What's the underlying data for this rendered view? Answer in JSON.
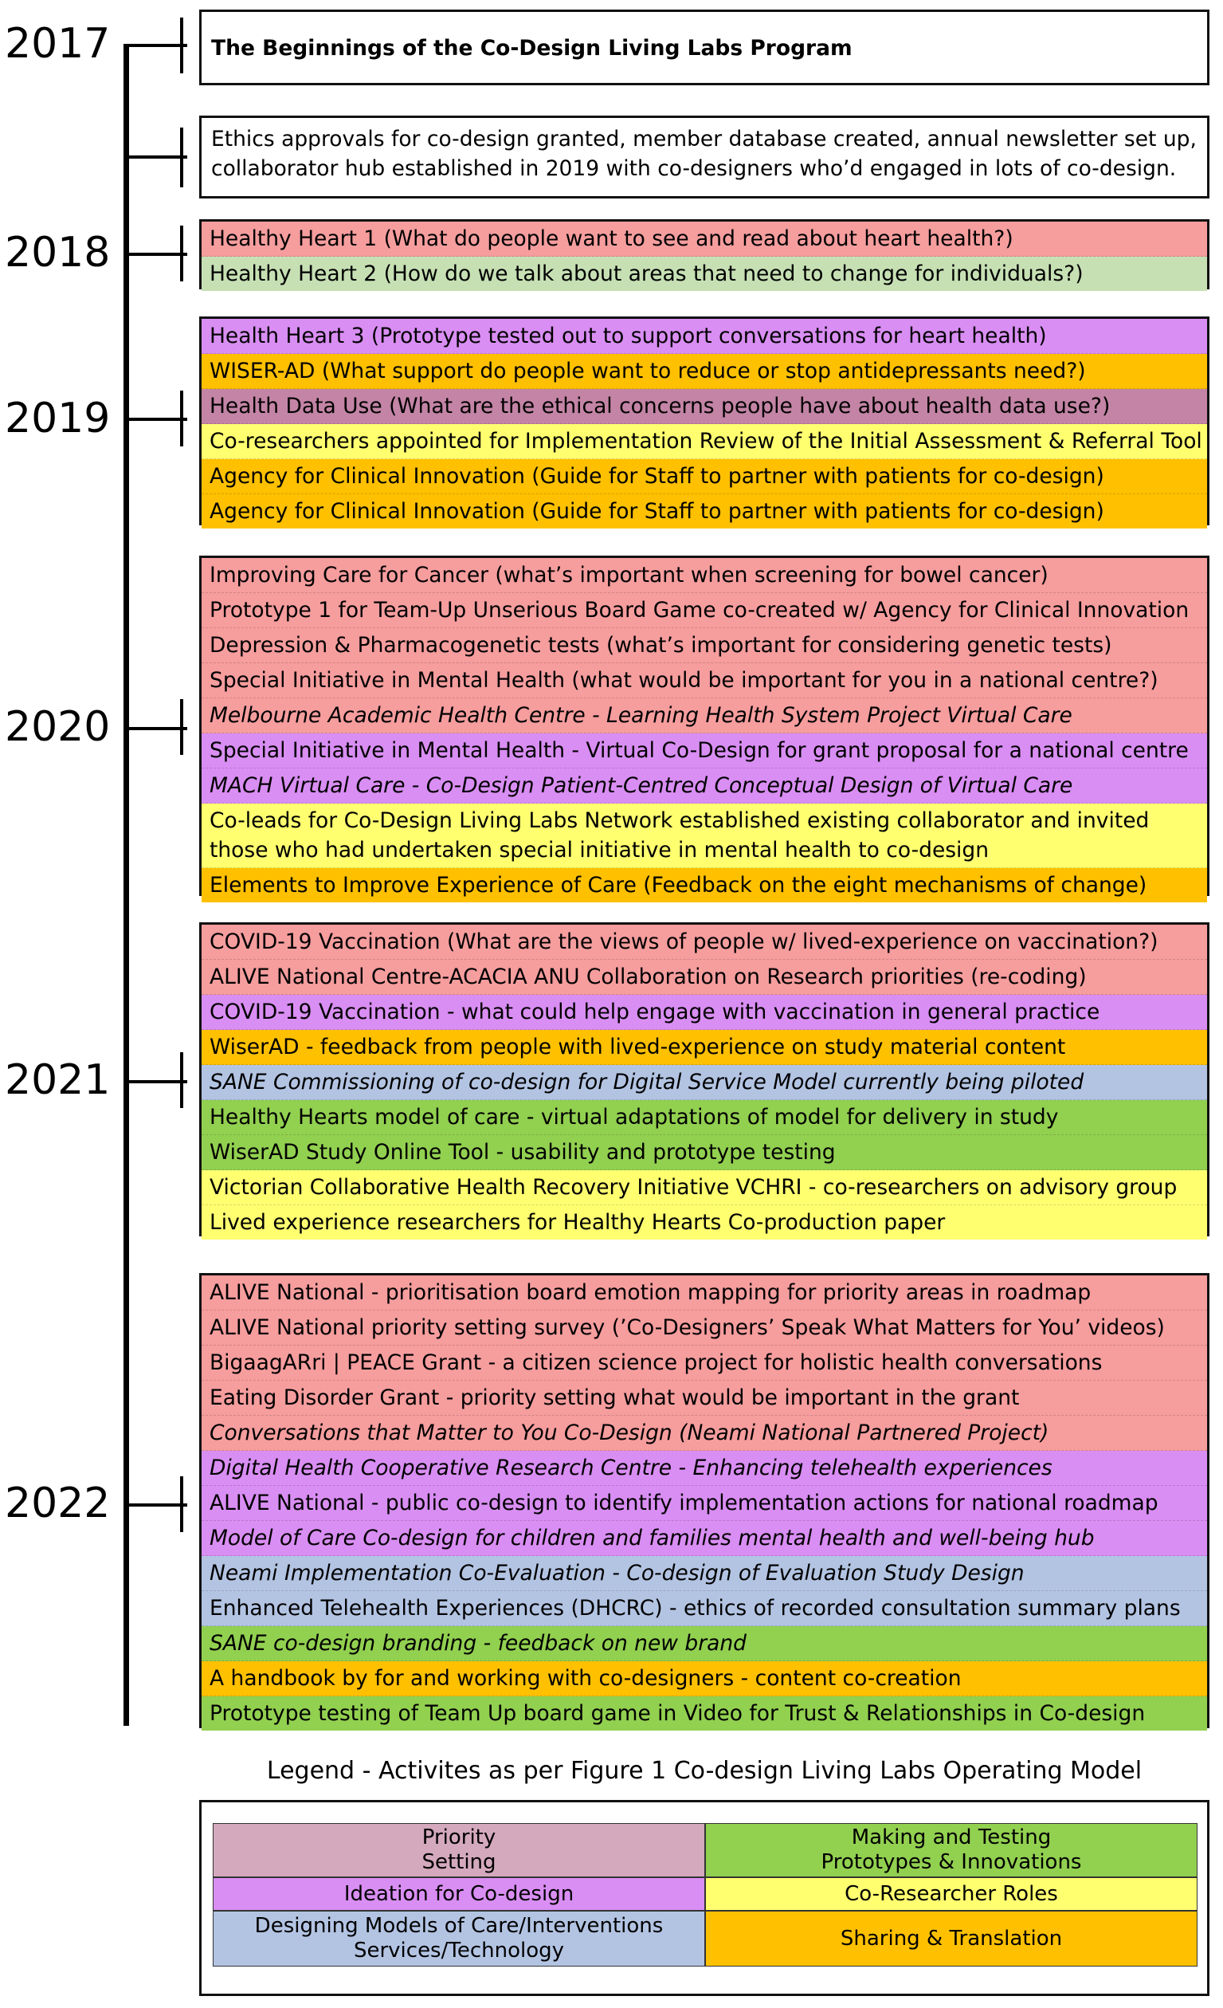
{
  "colors": {
    "priority_setting": "#f69d9e",
    "ideation": "#d98ef3",
    "designing_models": "#b3c4e3",
    "making_testing": "#92d050",
    "co_researcher": "#ffff70",
    "sharing_translation": "#ffc000",
    "healthy_heart_2": "#c6e0b4",
    "health_data": "#c384a5",
    "legend_priority": "#d4a9bd"
  },
  "years": [
    {
      "label": "2017"
    },
    {
      "label": "2018"
    },
    {
      "label": "2019"
    },
    {
      "label": "2020"
    },
    {
      "label": "2021"
    },
    {
      "label": "2022"
    }
  ],
  "title_box": {
    "text": "The Beginnings of the Co-Design Living Labs Program"
  },
  "ethics_box": {
    "text": "Ethics approvals for co-design granted, member database created, annual newsletter set up, collaborator hub established in 2019 with co-designers who’d engaged in lots of co-design."
  },
  "groups": [
    {
      "rows": [
        {
          "text": "Healthy Heart 1 (What do people want to see and read about heart health?)",
          "color": "#f69d9e"
        },
        {
          "text": "Healthy Heart 2 (How do we talk about areas that need to change for individuals?)",
          "color": "#c6e0b4"
        }
      ]
    },
    {
      "rows": [
        {
          "text": "Health Heart 3 (Prototype tested out to support conversations for heart health)",
          "color": "#d98ef3"
        },
        {
          "text": "WISER-AD (What support do people want to reduce or stop antidepressants need?)",
          "color": "#ffc000"
        },
        {
          "text": "Health Data Use (What are the ethical concerns people have about health data use?)",
          "color": "#c384a5"
        },
        {
          "text": "Co-researchers appointed for Implementation Review of the Initial Assessment & Referral Tool",
          "color": "#ffff70"
        },
        {
          "text": "Agency for Clinical Innovation (Guide for Staff to partner with patients for co-design)",
          "color": "#ffc000"
        },
        {
          "text": "Agency for Clinical Innovation (Guide for Staff to partner with patients for co-design)",
          "color": "#ffc000"
        }
      ]
    },
    {
      "rows": [
        {
          "text": "Improving Care for Cancer (what’s important when screening for bowel cancer)",
          "color": "#f69d9e"
        },
        {
          "text": "Prototype 1 for Team-Up Unserious Board Game co-created w/ Agency for Clinical Innovation",
          "color": "#f69d9e"
        },
        {
          "text": "Depression & Pharmacogenetic tests (what’s important for considering genetic tests)",
          "color": "#f69d9e"
        },
        {
          "text": "Special Initiative in Mental Health (what would be important for you in a national centre?)",
          "color": "#f69d9e"
        },
        {
          "text": "Melbourne Academic Health Centre - Learning Health System Project Virtual Care",
          "color": "#f69d9e",
          "italic": true
        },
        {
          "text": "Special Initiative in Mental Health - Virtual Co-Design for grant proposal for a national centre",
          "color": "#d98ef3"
        },
        {
          "text": "MACH Virtual Care - Co-Design Patient-Centred Conceptual Design of Virtual Care",
          "color": "#d98ef3",
          "italic": true
        },
        {
          "text": "Co-leads for Co-Design Living Labs Network established existing collaborator and invited those who had undertaken special initiative in mental health to co-design",
          "color": "#ffff70",
          "two": true
        },
        {
          "text": "Elements to Improve Experience of Care (Feedback on the eight mechanisms of change)",
          "color": "#ffc000"
        }
      ]
    },
    {
      "rows": [
        {
          "text": "COVID-19 Vaccination (What are the views of people w/ lived-experience on vaccination?)",
          "color": "#f69d9e"
        },
        {
          "text": "ALIVE National Centre-ACACIA ANU Collaboration on Research priorities (re-coding)",
          "color": "#f69d9e"
        },
        {
          "text": "COVID-19 Vaccination - what could help engage with vaccination in general practice",
          "color": "#d98ef3"
        },
        {
          "text": "WiserAD - feedback from people with lived-experience on study material content",
          "color": "#ffc000"
        },
        {
          "text": "SANE Commissioning of co-design for Digital Service Model currently being piloted",
          "color": "#b3c4e3",
          "italic": true
        },
        {
          "text": "Healthy Hearts model of care - virtual adaptations of model for delivery in study",
          "color": "#92d050"
        },
        {
          "text": "WiserAD Study Online Tool - usability and prototype testing",
          "color": "#92d050"
        },
        {
          "text": "Victorian Collaborative Health Recovery Initiative VCHRI - co-researchers on advisory group",
          "color": "#ffff70"
        },
        {
          "text": "Lived experience researchers for Healthy Hearts Co-production paper",
          "color": "#ffff70"
        }
      ]
    },
    {
      "rows": [
        {
          "text": "ALIVE National - prioritisation board emotion mapping for priority areas in roadmap",
          "color": "#f69d9e"
        },
        {
          "text": "ALIVE National priority setting survey (’Co-Designers’ Speak What Matters for You’ videos)",
          "color": "#f69d9e"
        },
        {
          "text": "BigaagARri | PEACE Grant - a citizen science project for holistic health conversations",
          "color": "#f69d9e"
        },
        {
          "text": "Eating Disorder Grant - priority setting what would be important in the grant",
          "color": "#f69d9e"
        },
        {
          "text": "Conversations that Matter to You Co-Design (Neami National Partnered Project)",
          "color": "#f69d9e",
          "italic": true
        },
        {
          "text": "Digital Health Cooperative Research Centre - Enhancing telehealth experiences",
          "color": "#d98ef3",
          "italic": true
        },
        {
          "text": "ALIVE National - public co-design to identify implementation actions for national roadmap",
          "color": "#d98ef3"
        },
        {
          "text": "Model of Care Co-design for children and families mental health and well-being hub",
          "color": "#d98ef3",
          "italic": true
        },
        {
          "text": "Neami Implementation Co-Evaluation - Co-design of Evaluation Study Design",
          "color": "#b3c4e3",
          "italic": true
        },
        {
          "text": "Enhanced Telehealth Experiences (DHCRC) - ethics of recorded consultation summary plans",
          "color": "#b3c4e3"
        },
        {
          "text": "SANE co-design branding - feedback on new brand",
          "color": "#92d050",
          "italic": true
        },
        {
          "text": "A handbook by for and working with co-designers - content co-creation",
          "color": "#ffc000"
        },
        {
          "text": "Prototype testing of Team Up board game in Video for Trust & Relationships in Co-design",
          "color": "#92d050"
        }
      ]
    }
  ],
  "legend": {
    "title": "Legend - Activites as per Figure 1 Co-design Living Labs Operating Model",
    "priority_setting": {
      "line1": "Priority",
      "line2": "Setting"
    },
    "making_testing": {
      "line1": "Making and Testing",
      "line2": "Prototypes & Innovations"
    },
    "ideation": "Ideation for Co-design",
    "co_researcher": "Co-Researcher Roles",
    "designing_models": {
      "line1": "Designing Models of Care/Interventions",
      "line2": "Services/Technology"
    },
    "sharing_translation": "Sharing & Translation"
  }
}
